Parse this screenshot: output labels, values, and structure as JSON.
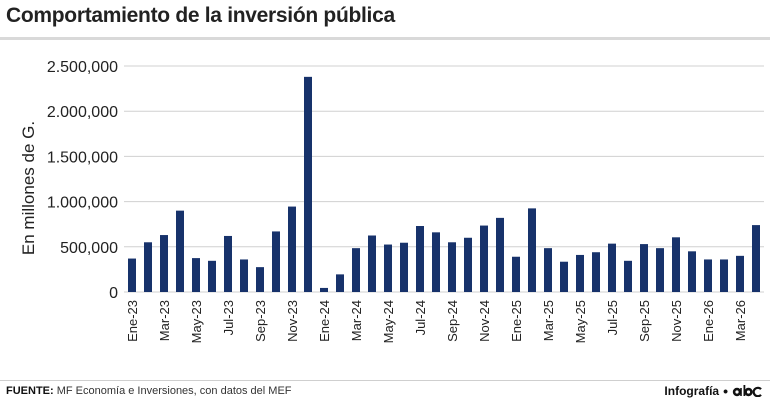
{
  "header": {
    "title": "Comportamiento de la inversión pública"
  },
  "footer": {
    "source_label": "FUENTE:",
    "source_text": " MF Economía e Inversiones, con datos del MEF",
    "credit_label": "Infografía",
    "credit_separator": "•",
    "logo_name": "abc-logo-icon"
  },
  "colors": {
    "bar": "#17326b",
    "grid": "#d0d0d0",
    "axis_text": "#222222"
  },
  "chart_data": {
    "type": "bar",
    "title": "",
    "xlabel": "",
    "ylabel": "En millones de G.",
    "ylim": [
      0,
      2500000
    ],
    "yticks": [
      0,
      500000,
      1000000,
      1500000,
      2000000,
      2500000
    ],
    "ytick_labels": [
      "0",
      "500,000",
      "1.000,000",
      "1.500,000",
      "2.000,000",
      "2.500,000"
    ],
    "grid": true,
    "categories": [
      "Ene-23",
      "Feb-23",
      "Mar-23",
      "Abr-23",
      "May-23",
      "Jun-23",
      "Jul-23",
      "Ago-23",
      "Sep-23",
      "Oct-23",
      "Nov-23",
      "Dic-23",
      "Ene-24",
      "Feb-24",
      "Mar-24",
      "Abr-24",
      "May-24",
      "Jun-24",
      "Jul-24",
      "Ago-24",
      "Sep-24",
      "Oct-24",
      "Nov-24",
      "Dic-24",
      "Ene-25",
      "Feb-25",
      "Mar-25",
      "Abr-25",
      "May-25",
      "Jun-25",
      "Jul-25",
      "Ago-25",
      "Sep-25",
      "Oct-25",
      "Nov-25",
      "Dic-25",
      "Ene-26",
      "Feb-26",
      "Mar-26",
      "Abr-26"
    ],
    "xtick_labels": [
      "Ene-23",
      "",
      "Mar-23",
      "",
      "May-23",
      "",
      "Jul-23",
      "",
      "Sep-23",
      "",
      "Nov-23",
      "",
      "Ene-24",
      "",
      "Mar-24",
      "",
      "May-24",
      "",
      "Jul-24",
      "",
      "Sep-24",
      "",
      "Nov-24",
      "",
      "Ene-25",
      "",
      "Mar-25",
      "",
      "May-25",
      "",
      "Jul-25",
      "",
      "Sep-25",
      "",
      "Nov-25",
      "",
      "Ene-26",
      "",
      "Mar-26",
      ""
    ],
    "values": [
      370000,
      550000,
      630000,
      900000,
      375000,
      345000,
      620000,
      360000,
      275000,
      670000,
      945000,
      2380000,
      45000,
      195000,
      485000,
      625000,
      525000,
      545000,
      730000,
      660000,
      550000,
      600000,
      735000,
      820000,
      390000,
      925000,
      485000,
      335000,
      410000,
      440000,
      535000,
      345000,
      530000,
      485000,
      605000,
      450000,
      360000,
      360000,
      400000,
      740000
    ]
  }
}
